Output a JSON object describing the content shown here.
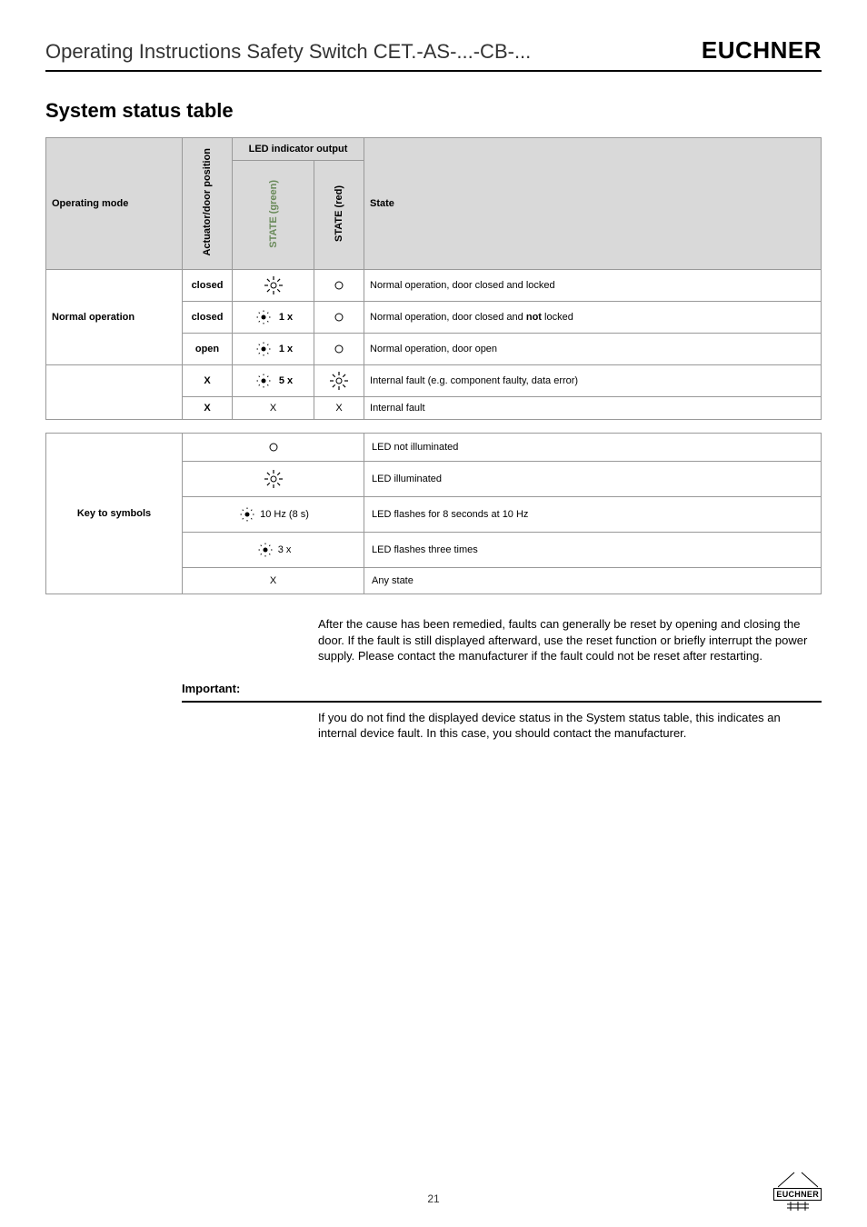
{
  "header": {
    "title": "Operating Instructions Safety Switch CET.-AS-...-CB-...",
    "brand": "EUCHNER"
  },
  "section_title": "System status table",
  "table": {
    "headers": {
      "mode": "Operating mode",
      "led_output": "LED indicator output",
      "pos": "Actuator/door position",
      "green": "STATE (green)",
      "red": "STATE (red)",
      "state": "State"
    },
    "mode_label": "Normal operation",
    "rows": [
      {
        "pos": "closed",
        "green_icon": "on",
        "green_count": "",
        "red_icon": "off",
        "state_html": "Normal operation, door closed and locked"
      },
      {
        "pos": "closed",
        "green_icon": "blink",
        "green_count": "1 x",
        "red_icon": "off",
        "state_html": "Normal operation, door closed and <b>not</b> locked"
      },
      {
        "pos": "open",
        "green_icon": "blink",
        "green_count": "1 x",
        "red_icon": "off",
        "state_html": "Normal operation, door open"
      },
      {
        "pos": "X",
        "green_icon": "blink",
        "green_count": "5 x",
        "red_icon": "on",
        "state_html": "Internal fault (e.g. component faulty, data error)"
      },
      {
        "pos": "X",
        "green_text": "X",
        "red_text": "X",
        "state_html": "Internal fault"
      }
    ]
  },
  "key": {
    "label": "Key to symbols",
    "rows": [
      {
        "sym_icon": "off",
        "sym_text": "",
        "desc": "LED not illuminated"
      },
      {
        "sym_icon": "on",
        "sym_text": "",
        "desc": "LED illuminated"
      },
      {
        "sym_icon": "blink",
        "sym_text": "10 Hz (8 s)",
        "desc": "LED flashes for 8 seconds at 10 Hz"
      },
      {
        "sym_icon": "blink",
        "sym_text": "3 x",
        "desc": "LED flashes three times"
      },
      {
        "sym_icon": "",
        "sym_text": "X",
        "desc": "Any state"
      }
    ]
  },
  "body_text": "After the cause has been remedied, faults can generally be reset by opening and closing the door. If the fault is still displayed afterward, use the reset function or briefly interrupt the power supply. Please contact the manufacturer if the fault could not be reset after restarting.",
  "important_label": "Important:",
  "important_text": "If you do not find the displayed device status in the System status table, this indicates an internal device fault. In this case, you should contact the manufacturer.",
  "page_number": "21",
  "corner_brand": "EUCHNER",
  "colors": {
    "hdr_bg": "#d9d9d9",
    "border": "#999999",
    "green_header": "#6a8a5a"
  }
}
